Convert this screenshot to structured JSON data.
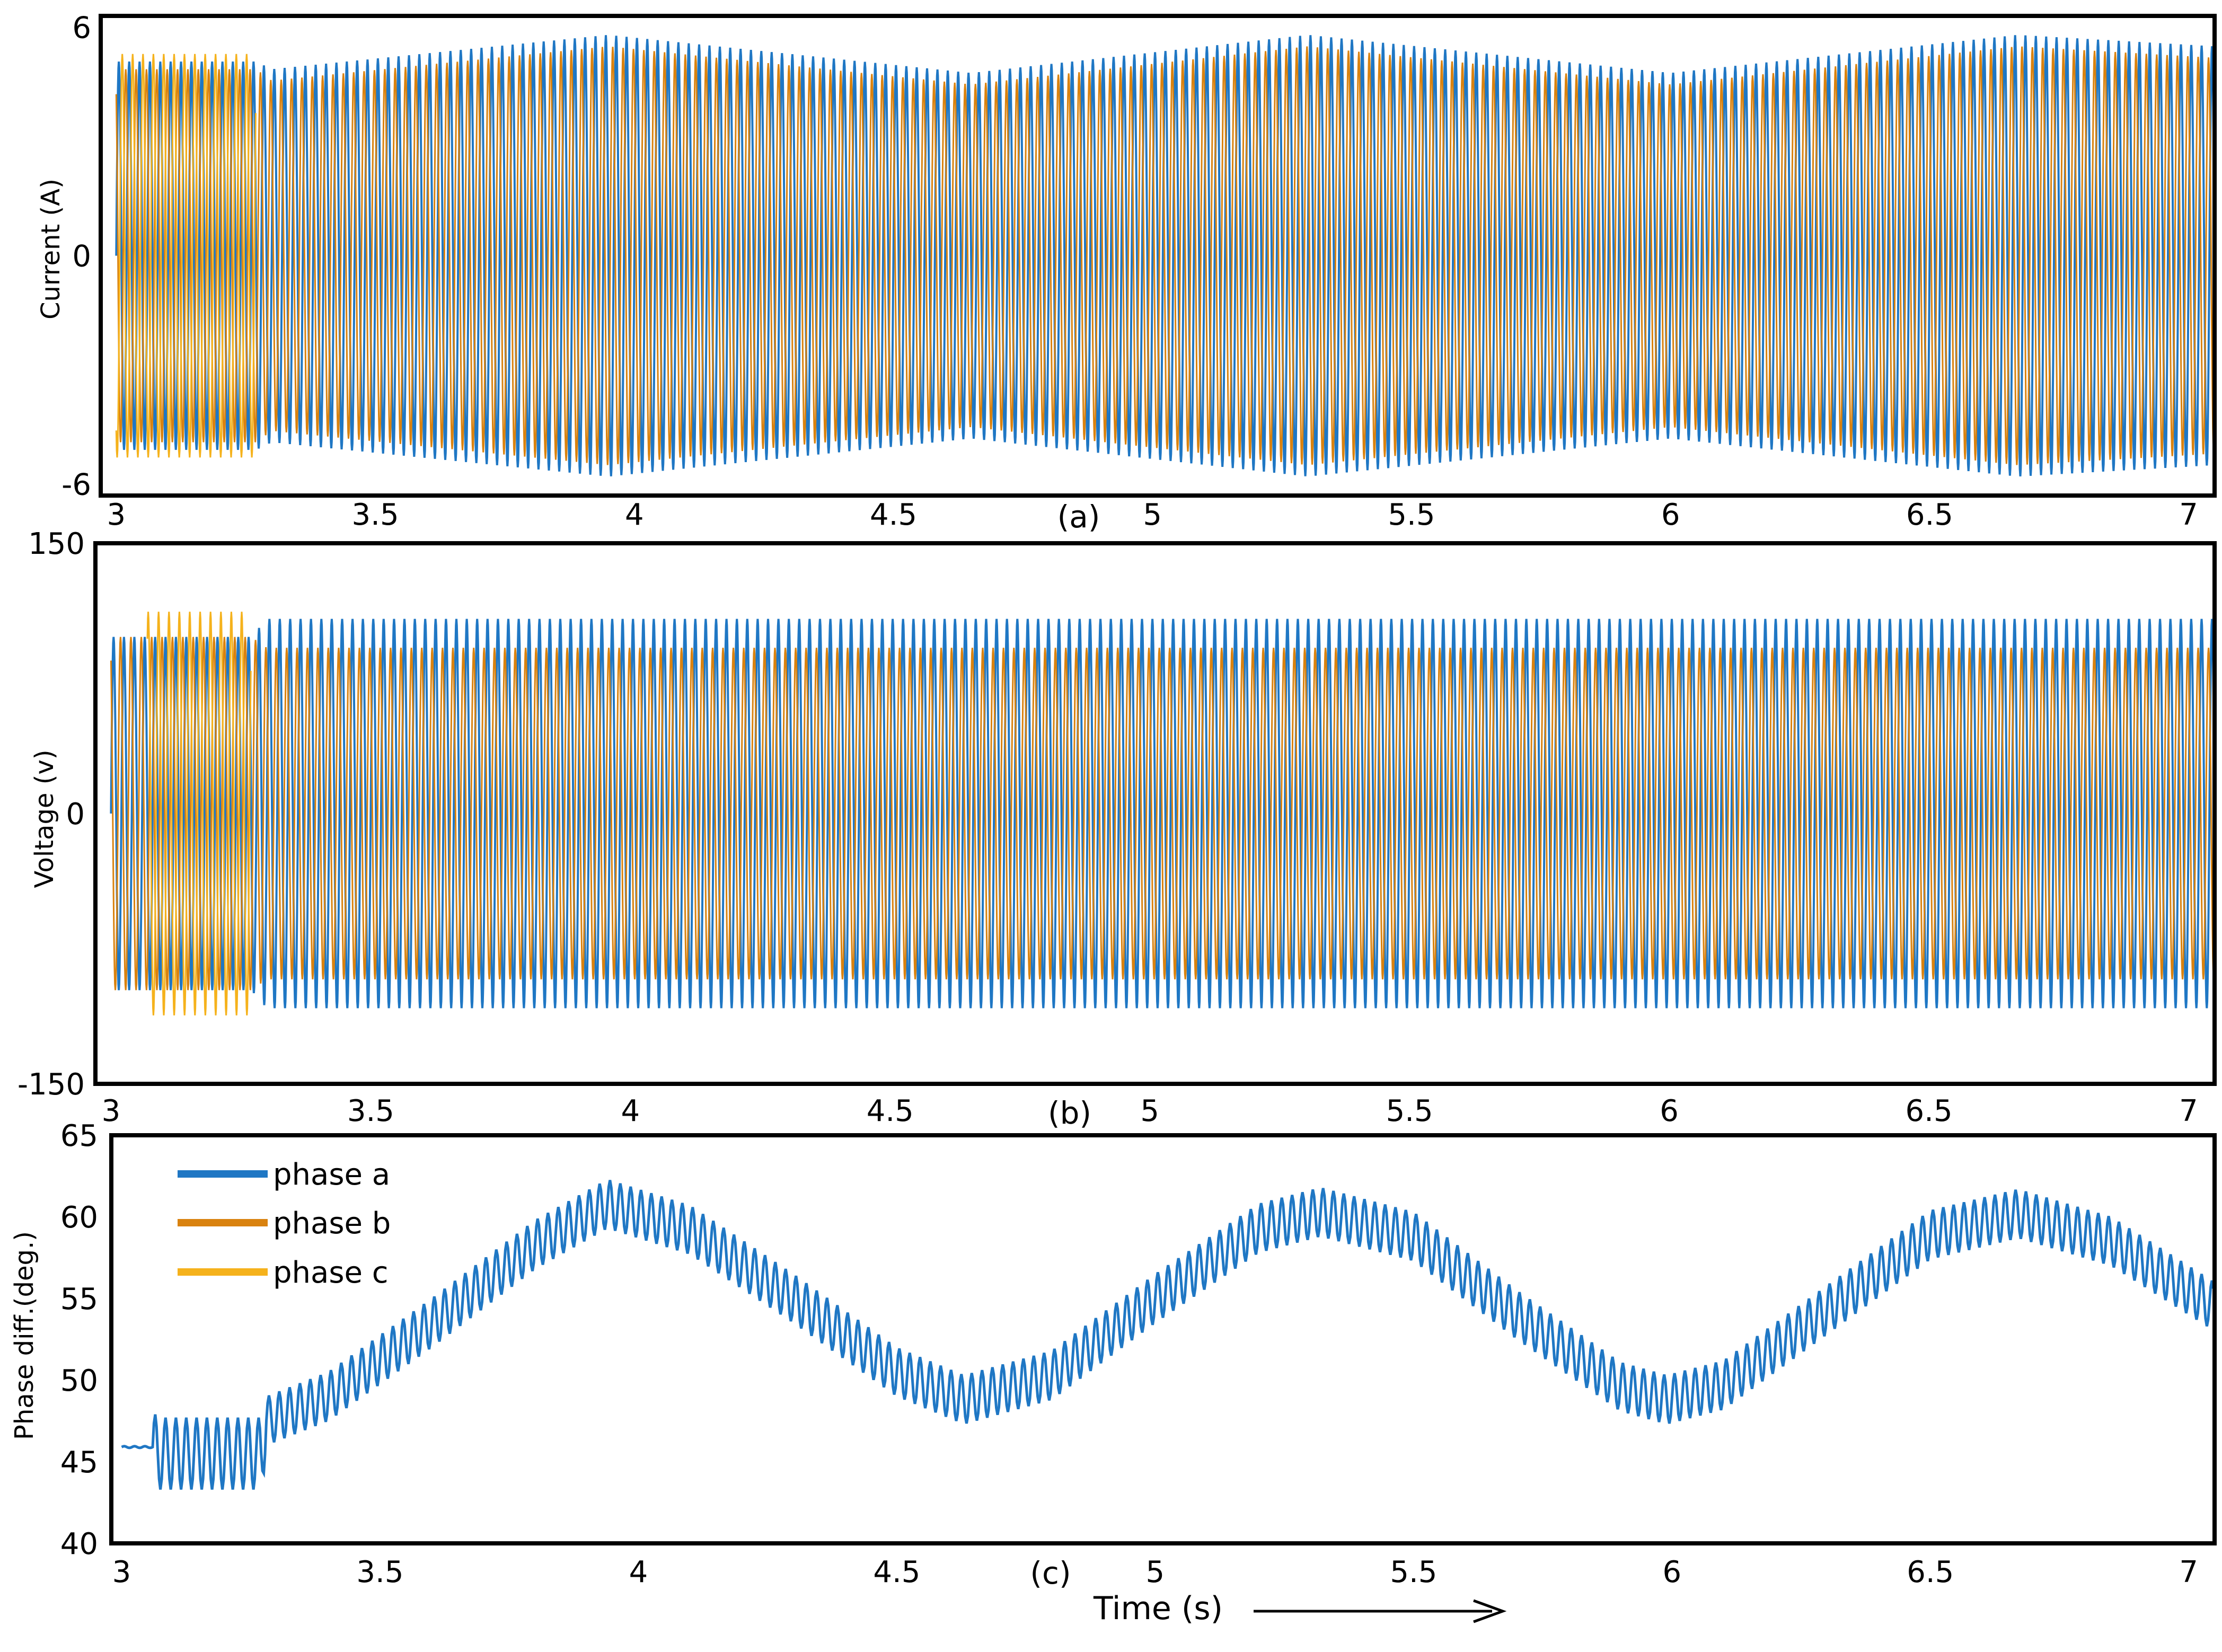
{
  "colors": {
    "phase_a": "#1f77c4",
    "phase_b": "#d9820f",
    "phase_c": "#f5b21c",
    "phase_b_fill": "#f0aa5a"
  },
  "legend": {
    "items": [
      "phase a",
      "phase b",
      "phase c"
    ]
  },
  "x_axis_label": "Time (s)",
  "chart_data": [
    {
      "type": "line",
      "panel": "(a)",
      "ylabel": "Current (A)",
      "xlim": [
        2.97,
        7.05
      ],
      "ylim": [
        -6.3,
        6.3
      ],
      "xticks": [
        3,
        3.5,
        4,
        4.5,
        5,
        5.5,
        6,
        6.5,
        7
      ],
      "yticks": [
        -6,
        0,
        6
      ],
      "series": [
        {
          "name": "phase a",
          "description": "three-phase sinusoid, amplitude oscillating between ~4.8 and ~5.8 A after t=3.27 s",
          "envelope_t": [
            3.0,
            3.27,
            3.3,
            3.95,
            4.65,
            5.3,
            6.0,
            6.67,
            7.05
          ],
          "envelope_amp": [
            5.1,
            5.1,
            4.9,
            5.8,
            4.8,
            5.8,
            4.8,
            5.8,
            5.5
          ]
        },
        {
          "name": "phase b",
          "envelope_t": [
            3.0,
            3.27,
            3.3,
            3.95,
            4.65,
            5.3,
            6.0,
            6.67,
            7.05
          ],
          "envelope_amp": [
            4.9,
            4.9,
            4.6,
            5.5,
            4.5,
            5.5,
            4.5,
            5.5,
            5.2
          ]
        },
        {
          "name": "phase c",
          "envelope_t": [
            3.0,
            3.27
          ],
          "envelope_amp": [
            5.3,
            5.3
          ]
        }
      ]
    },
    {
      "type": "line",
      "panel": "(b)",
      "ylabel": "Voltage (v)",
      "xlim": [
        2.97,
        7.05
      ],
      "ylim": [
        -150,
        150
      ],
      "xticks": [
        3,
        3.5,
        4,
        4.5,
        5,
        5.5,
        6,
        6.5,
        7
      ],
      "yticks": [
        -150,
        0,
        150
      ],
      "series": [
        {
          "name": "phase a",
          "envelope_t": [
            3.0,
            3.27,
            3.3,
            7.05
          ],
          "envelope_amp": [
            98,
            98,
            108,
            108
          ]
        },
        {
          "name": "phase b",
          "envelope_t": [
            3.0,
            3.27,
            3.3,
            7.05
          ],
          "envelope_amp": [
            98,
            98,
            92,
            92
          ]
        },
        {
          "name": "phase c",
          "envelope_t": [
            3.07,
            3.27
          ],
          "envelope_amp": [
            112,
            112
          ]
        }
      ]
    },
    {
      "type": "line",
      "panel": "(c)",
      "ylabel": "Phase diff.(deg.)",
      "xlabel": "Time (s)",
      "xlim": [
        2.98,
        7.05
      ],
      "ylim": [
        40,
        65
      ],
      "xticks": [
        3,
        3.5,
        4,
        4.5,
        5,
        5.5,
        6,
        6.5,
        7
      ],
      "yticks": [
        40,
        45,
        50,
        55,
        60,
        65
      ],
      "series": [
        {
          "name": "phase a",
          "description": "band of fast oscillation, width ~3 deg, centre follows a slow sinusoid",
          "t": [
            3.0,
            3.06,
            3.07,
            3.27,
            3.28,
            3.4,
            3.6,
            3.8,
            3.94,
            4.1,
            4.3,
            4.5,
            4.63,
            4.8,
            5.0,
            5.2,
            5.32,
            5.5,
            5.7,
            5.9,
            5.99,
            6.1,
            6.3,
            6.5,
            6.67,
            6.85,
            7.05
          ],
          "center": [
            45.9,
            45.9,
            45.5,
            45.5,
            47.5,
            49.0,
            53.5,
            58.3,
            60.8,
            59.2,
            55.0,
            50.5,
            48.8,
            50.3,
            55.0,
            59.3,
            60.3,
            58.8,
            54.0,
            49.6,
            48.8,
            49.7,
            54.3,
            58.9,
            60.2,
            58.5,
            54.5
          ]
        }
      ]
    }
  ]
}
